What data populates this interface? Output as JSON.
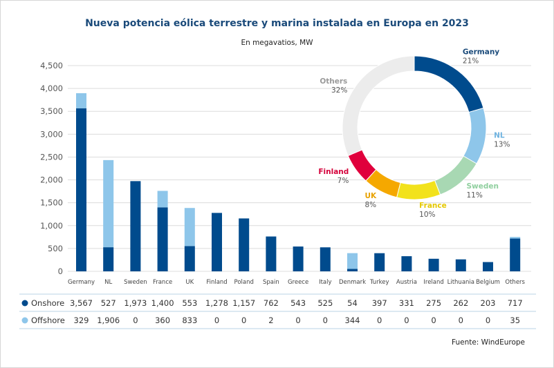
{
  "chart_data": {
    "type": "bar",
    "stacked": true,
    "title": "Nueva potencia eólica terrestre y marina instalada en Europa en 2023",
    "subtitle": "En megavatios, MW",
    "source": "Fuente: WindEurope",
    "ylim": [
      0,
      4500
    ],
    "yticks": [
      0,
      500,
      1000,
      1500,
      2000,
      2500,
      3000,
      3500,
      4000,
      4500
    ],
    "ytick_labels": [
      "0",
      "500",
      "1,000",
      "1,500",
      "2,000",
      "2,500",
      "3,000",
      "3,500",
      "4,000",
      "4,500"
    ],
    "grid": true,
    "categories": [
      "Germany",
      "NL",
      "Sweden",
      "France",
      "UK",
      "Finland",
      "Poland",
      "Spain",
      "Greece",
      "Italy",
      "Denmark",
      "Turkey",
      "Austria",
      "Ireland",
      "Lithuania",
      "Belgium",
      "Others"
    ],
    "series": [
      {
        "name": "Onshore",
        "color": "#004b8d",
        "values": [
          3567,
          527,
          1973,
          1400,
          553,
          1278,
          1157,
          762,
          543,
          525,
          54,
          397,
          331,
          275,
          262,
          203,
          717
        ],
        "labels": [
          "3,567",
          "527",
          "1,973",
          "1,400",
          "553",
          "1,278",
          "1,157",
          "762",
          "543",
          "525",
          "54",
          "397",
          "331",
          "275",
          "262",
          "203",
          "717"
        ]
      },
      {
        "name": "Offshore",
        "color": "#8ec6ea",
        "values": [
          329,
          1906,
          0,
          360,
          833,
          0,
          0,
          2,
          0,
          0,
          344,
          0,
          0,
          0,
          0,
          0,
          35
        ],
        "labels": [
          "329",
          "1,906",
          "0",
          "360",
          "833",
          "0",
          "0",
          "2",
          "0",
          "0",
          "344",
          "0",
          "0",
          "0",
          "0",
          "0",
          "35"
        ]
      }
    ]
  },
  "pie_chart": {
    "type": "pie",
    "donut": true,
    "slices": [
      {
        "name": "Germany",
        "pct": 21,
        "label": "21%",
        "color": "#004b8d"
      },
      {
        "name": "NL",
        "pct": 13,
        "label": "13%",
        "color": "#8ec6ea"
      },
      {
        "name": "Sweden",
        "pct": 11,
        "label": "11%",
        "color": "#a8d8b3"
      },
      {
        "name": "France",
        "pct": 10,
        "label": "10%",
        "color": "#f2e21c"
      },
      {
        "name": "UK",
        "pct": 8,
        "label": "8%",
        "color": "#f5a800"
      },
      {
        "name": "Finland",
        "pct": 7,
        "label": "7%",
        "color": "#e0003c"
      },
      {
        "name": "Others",
        "pct": 32,
        "label": "32%",
        "color": "#ececec"
      }
    ],
    "label_colors": {
      "Germany": "#1a4a7a",
      "NL": "#6fb3e0",
      "Sweden": "#8fcf9e",
      "France": "#e5c800",
      "UK": "#e8a200",
      "Finland": "#d4003a",
      "Others": "#9a9a9a"
    },
    "pct_color": "#555555"
  }
}
